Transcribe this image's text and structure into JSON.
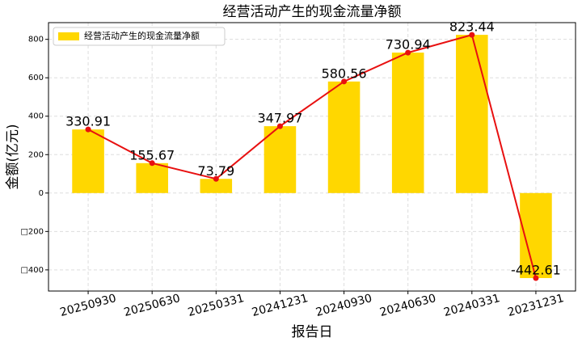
{
  "chart_data": {
    "type": "bar",
    "title": "经营活动产生的现金流量净额",
    "x_label": "报告日",
    "y_label": "金额(亿元)",
    "categories": [
      "20250930",
      "20250630",
      "20250331",
      "20241231",
      "20240930",
      "20240630",
      "20240331",
      "20231231"
    ],
    "series": [
      {
        "name": "经营活动产生的现金流量净额",
        "color": "#ffd700",
        "line_color": "#e81010",
        "values": [
          330.91,
          155.67,
          73.79,
          347.97,
          580.56,
          730.94,
          823.44,
          -442.61
        ]
      }
    ],
    "ylim": [
      -510,
      887
    ],
    "yticks": [
      {
        "value": -400,
        "label": "□400"
      },
      {
        "value": -200,
        "label": "□200"
      },
      0,
      200,
      400,
      600,
      800
    ],
    "grid": true,
    "legend": "upper left"
  }
}
